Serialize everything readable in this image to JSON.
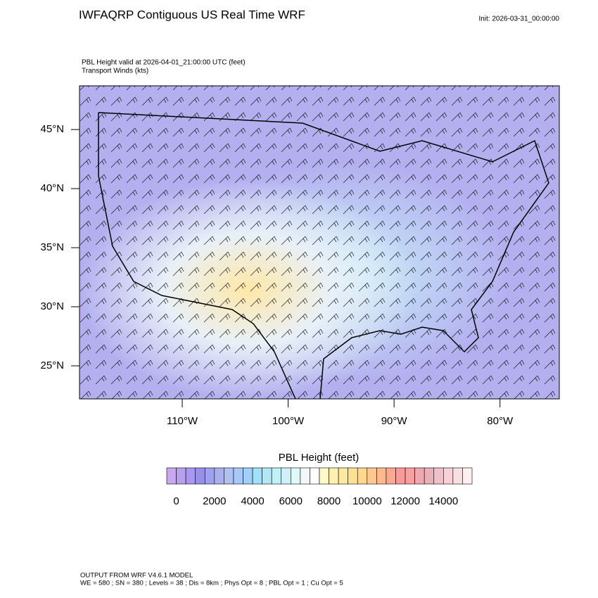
{
  "header": {
    "title": "IWFAQRP Contiguous US Real Time WRF",
    "init": "Init: 2026-03-31_00:00:00",
    "subtitle": [
      "PBL Height valid at 2026-04-01_21:00:00 UTC   (feet)",
      "Transport Winds   (kts)"
    ]
  },
  "map": {
    "xlim": [
      -119.7,
      -74.4
    ],
    "ylim": [
      22.2,
      48.7
    ],
    "xticks": [
      {
        "value": -110,
        "label": "110°W"
      },
      {
        "value": -100,
        "label": "100°W"
      },
      {
        "value": -90,
        "label": "90°W"
      },
      {
        "value": -80,
        "label": "80°W"
      }
    ],
    "yticks": [
      {
        "value": 45,
        "label": "45°N"
      },
      {
        "value": 40,
        "label": "40°N"
      },
      {
        "value": 35,
        "label": "35°N"
      },
      {
        "value": 30,
        "label": "30°N"
      },
      {
        "value": 25,
        "label": "25°N"
      }
    ]
  },
  "colorbar": {
    "title": "PBL Height  (feet)",
    "range": [
      -500,
      15500
    ],
    "ticks": [
      0,
      2000,
      4000,
      6000,
      8000,
      10000,
      12000,
      14000
    ],
    "colors": [
      "#c8a8f0",
      "#b8a0f0",
      "#a898f0",
      "#9890e8",
      "#a0a0f0",
      "#a8b0f0",
      "#b0c0f0",
      "#a8c8f8",
      "#a0d0f8",
      "#a0e0f8",
      "#b0e8f8",
      "#c0f0f8",
      "#d0f0f8",
      "#e0f8f8",
      "#f0f8f8",
      "#ffffff",
      "#fff8c8",
      "#fff0b0",
      "#ffe8a0",
      "#ffe090",
      "#ffd890",
      "#ffc890",
      "#ffb890",
      "#ffa890",
      "#ff9898",
      "#f8a0a0",
      "#f0a8b0",
      "#e8b0b8",
      "#f0c0c8",
      "#f8d0d8",
      "#f8e0e0",
      "#fff0f0"
    ]
  },
  "footer": [
    "OUTPUT FROM WRF V4.6.1 MODEL",
    "WE = 580 ; SN = 380 ; Levels = 38 ; Dis = 8km ; Phys Opt = 8 ; PBL Opt = 1 ; Cu Opt = 5"
  ]
}
